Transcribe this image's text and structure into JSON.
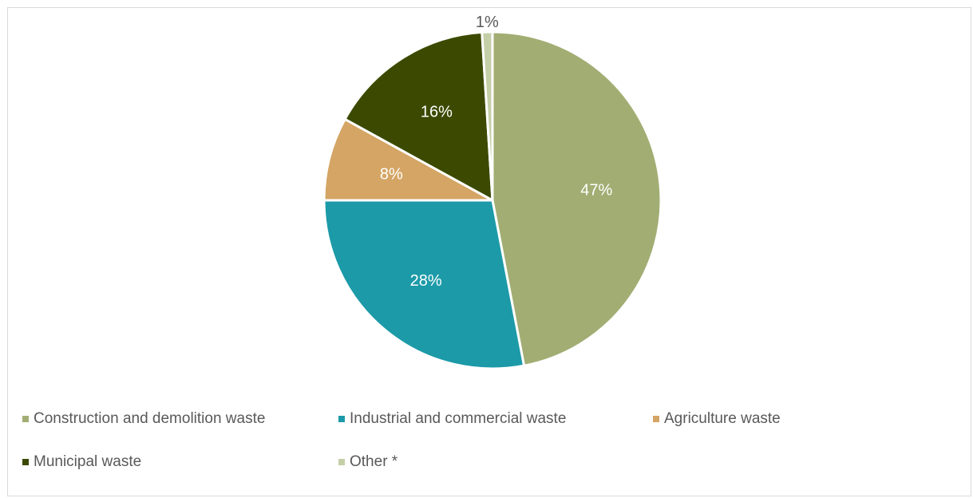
{
  "chart_data": {
    "type": "pie",
    "categories": [
      "Construction and demolition waste",
      "Industrial and commercial waste",
      "Agriculture waste",
      "Municipal waste",
      "Other *"
    ],
    "values": [
      47,
      28,
      8,
      16,
      1
    ],
    "data_labels": [
      "47%",
      "28%",
      "8%",
      "16%",
      "1%"
    ],
    "colors": [
      "#a2ad73",
      "#1c9aa8",
      "#d4a564",
      "#3b4a00",
      "#c4cfa8"
    ],
    "label_color": "#ffffff",
    "outside_label_color": "#595959",
    "legend_position": "bottom",
    "title": ""
  }
}
